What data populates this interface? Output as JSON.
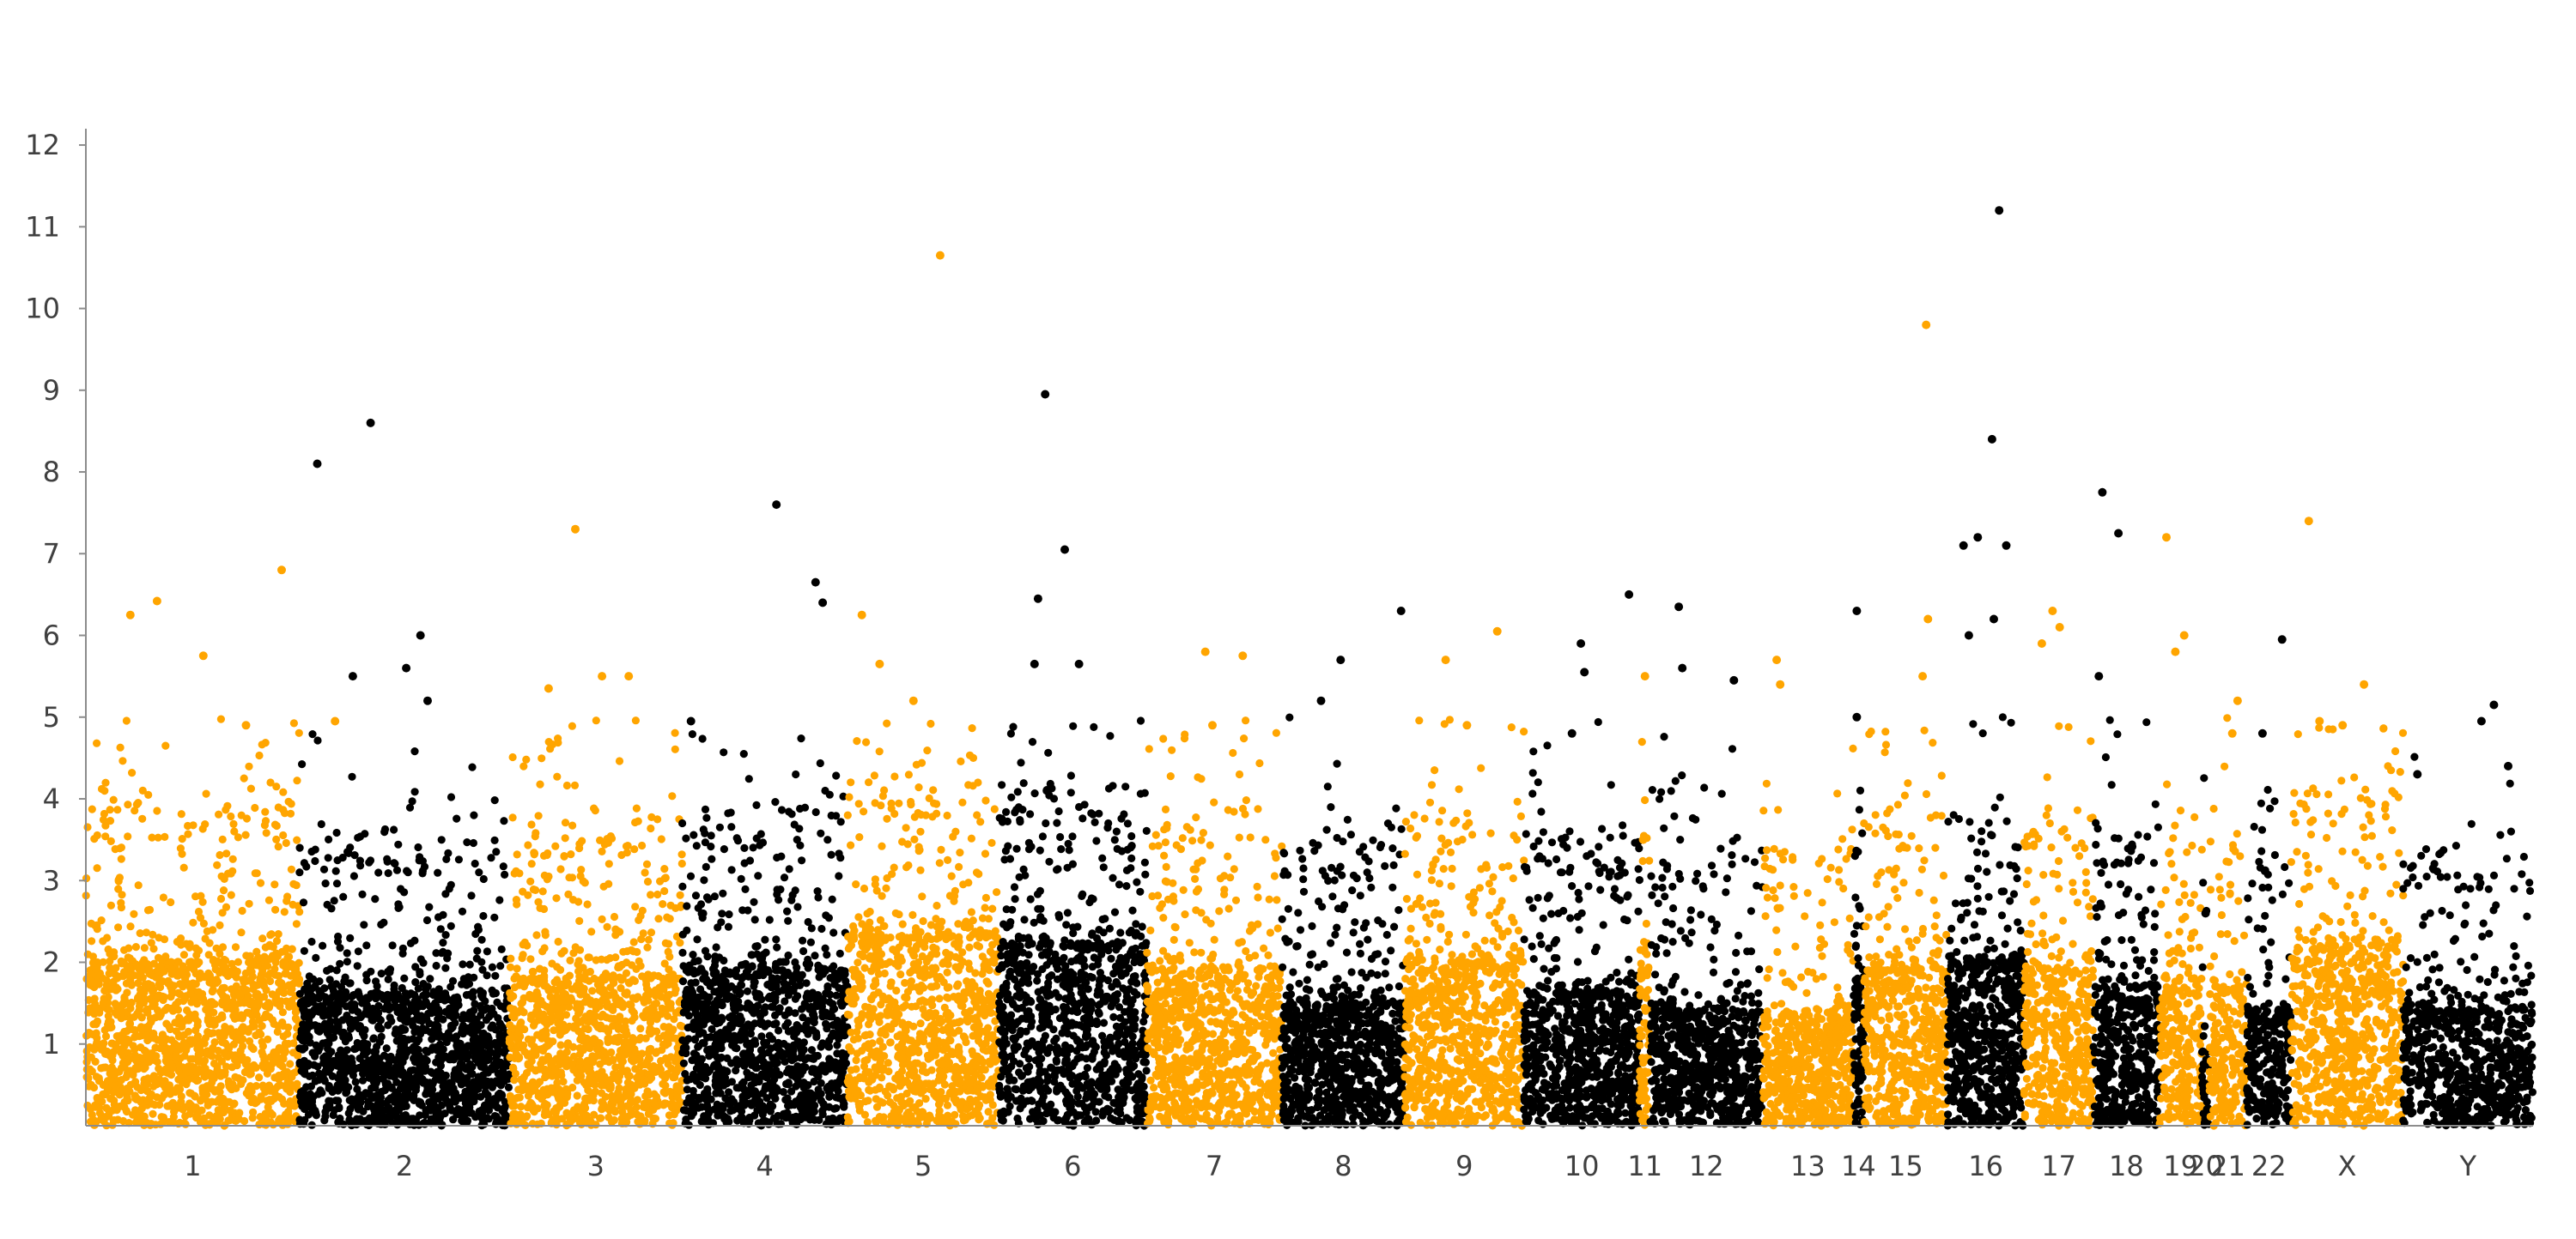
{
  "chart_data": {
    "type": "scatter",
    "title": "",
    "xlabel": "",
    "ylabel": "",
    "grid": false,
    "legend": "none",
    "ylim": [
      0,
      12.2
    ],
    "y_ticks": [
      "1",
      "2",
      "3",
      "4",
      "5",
      "6",
      "7",
      "8",
      "9",
      "10",
      "11",
      "12"
    ],
    "colors": {
      "odd": "#ffa500",
      "even": "#000000"
    },
    "categories": [
      "1",
      "2",
      "3",
      "4",
      "5",
      "6",
      "7",
      "8",
      "9",
      "10",
      "11",
      "12",
      "13",
      "14",
      "15",
      "16",
      "17",
      "18",
      "19",
      "20",
      "21",
      "22",
      "X",
      "Y"
    ],
    "chromosomes": [
      {
        "label": "1",
        "range": [
          0.0,
          12.0
        ],
        "max_bulk": 2.0,
        "top_points": [
          [
            2.5,
            6.25
          ],
          [
            4.0,
            6.42
          ],
          [
            6.6,
            5.75
          ],
          [
            11.0,
            6.8
          ],
          [
            9.0,
            4.9
          ],
          [
            14.0,
            4.95
          ]
        ],
        "count": 1500
      },
      {
        "label": "2",
        "range": [
          12.0,
          23.8
        ],
        "max_bulk": 1.6,
        "top_points": [
          [
            13.0,
            8.1
          ],
          [
            16.0,
            8.6
          ],
          [
            18.0,
            5.6
          ],
          [
            18.8,
            6.0
          ],
          [
            15.0,
            5.5
          ],
          [
            19.2,
            5.2
          ]
        ],
        "count": 1400
      },
      {
        "label": "3",
        "range": [
          23.8,
          33.5
        ],
        "max_bulk": 1.8,
        "top_points": [
          [
            27.5,
            7.3
          ],
          [
            29.0,
            5.5
          ],
          [
            30.5,
            5.5
          ],
          [
            26.0,
            5.35
          ]
        ],
        "count": 1150
      },
      {
        "label": "4",
        "range": [
          33.5,
          42.8
        ],
        "max_bulk": 1.9,
        "top_points": [
          [
            38.8,
            7.6
          ],
          [
            41.0,
            6.65
          ],
          [
            41.4,
            6.4
          ],
          [
            34.0,
            4.95
          ]
        ],
        "count": 1100
      },
      {
        "label": "5",
        "range": [
          42.8,
          51.3
        ],
        "max_bulk": 2.3,
        "top_points": [
          [
            48.0,
            10.65
          ],
          [
            43.6,
            6.25
          ],
          [
            44.6,
            5.65
          ],
          [
            46.5,
            5.2
          ]
        ],
        "count": 1000
      },
      {
        "label": "6",
        "range": [
          51.3,
          59.6
        ],
        "max_bulk": 2.2,
        "top_points": [
          [
            53.9,
            8.95
          ],
          [
            55.0,
            7.05
          ],
          [
            53.5,
            6.45
          ],
          [
            53.3,
            5.65
          ],
          [
            55.8,
            5.65
          ]
        ],
        "count": 1000
      },
      {
        "label": "7",
        "range": [
          59.6,
          67.2
        ],
        "max_bulk": 1.9,
        "top_points": [
          [
            62.9,
            5.8
          ],
          [
            65.0,
            5.75
          ],
          [
            63.3,
            4.9
          ]
        ],
        "count": 900
      },
      {
        "label": "8",
        "range": [
          67.2,
          74.1
        ],
        "max_bulk": 1.5,
        "top_points": [
          [
            70.5,
            5.7
          ],
          [
            73.9,
            6.3
          ],
          [
            69.4,
            5.2
          ]
        ],
        "count": 850
      },
      {
        "label": "9",
        "range": [
          74.1,
          80.8
        ],
        "max_bulk": 2.0,
        "top_points": [
          [
            79.3,
            6.05
          ],
          [
            76.4,
            5.7
          ],
          [
            77.6,
            4.9
          ]
        ],
        "count": 800
      },
      {
        "label": "10",
        "range": [
          80.8,
          87.3
        ],
        "max_bulk": 1.6,
        "top_points": [
          [
            84.0,
            5.9
          ],
          [
            84.2,
            5.55
          ],
          [
            86.7,
            6.5
          ],
          [
            83.5,
            4.8
          ]
        ],
        "count": 800
      },
      {
        "label": "11",
        "range": [
          87.3,
          87.9
        ],
        "max_bulk": 1.9,
        "top_points": [
          [
            87.6,
            5.5
          ],
          [
            87.5,
            3.5
          ]
        ],
        "count": 80
      },
      {
        "label": "12",
        "range": [
          87.9,
          94.2
        ],
        "max_bulk": 1.4,
        "top_points": [
          [
            89.5,
            6.35
          ],
          [
            89.7,
            5.6
          ],
          [
            92.6,
            5.45
          ]
        ],
        "count": 750
      },
      {
        "label": "13",
        "range": [
          94.2,
          99.3
        ],
        "max_bulk": 1.4,
        "top_points": [
          [
            95.0,
            5.7
          ],
          [
            95.2,
            5.4
          ]
        ],
        "count": 600
      },
      {
        "label": "14",
        "range": [
          99.3,
          99.9
        ],
        "max_bulk": 1.8,
        "top_points": [
          [
            99.5,
            6.3
          ],
          [
            99.5,
            5.0
          ]
        ],
        "count": 90
      },
      {
        "label": "15",
        "range": [
          99.9,
          104.6
        ],
        "max_bulk": 1.9,
        "top_points": [
          [
            103.4,
            9.8
          ],
          [
            103.5,
            6.2
          ],
          [
            103.2,
            5.5
          ]
        ],
        "count": 550
      },
      {
        "label": "16",
        "range": [
          104.6,
          108.9
        ],
        "max_bulk": 2.0,
        "top_points": [
          [
            107.5,
            11.2
          ],
          [
            107.1,
            8.4
          ],
          [
            105.5,
            7.1
          ],
          [
            106.3,
            7.2
          ],
          [
            107.9,
            7.1
          ],
          [
            107.2,
            6.2
          ],
          [
            105.8,
            6.0
          ]
        ],
        "count": 600
      },
      {
        "label": "17",
        "range": [
          108.9,
          112.8
        ],
        "max_bulk": 1.9,
        "top_points": [
          [
            110.5,
            6.3
          ],
          [
            110.9,
            6.1
          ],
          [
            109.9,
            5.9
          ]
        ],
        "count": 450
      },
      {
        "label": "18",
        "range": [
          112.8,
          116.5
        ],
        "max_bulk": 1.7,
        "top_points": [
          [
            113.3,
            7.75
          ],
          [
            114.2,
            7.25
          ],
          [
            113.1,
            5.5
          ]
        ],
        "count": 450
      },
      {
        "label": "19",
        "range": [
          116.5,
          118.9
        ],
        "max_bulk": 1.8,
        "top_points": [
          [
            116.9,
            7.2
          ],
          [
            117.9,
            6.0
          ],
          [
            117.4,
            5.8
          ]
        ],
        "count": 250
      },
      {
        "label": "20",
        "range": [
          118.9,
          119.3
        ],
        "max_bulk": 1.0,
        "top_points": [
          [
            119.1,
            2.6
          ]
        ],
        "count": 40
      },
      {
        "label": "21",
        "range": [
          119.3,
          121.4
        ],
        "max_bulk": 1.7,
        "top_points": [
          [
            120.9,
            5.2
          ],
          [
            120.6,
            4.8
          ]
        ],
        "count": 220
      },
      {
        "label": "22",
        "range": [
          121.4,
          123.9
        ],
        "max_bulk": 1.4,
        "top_points": [
          [
            123.4,
            5.95
          ],
          [
            122.3,
            4.8
          ]
        ],
        "count": 280
      },
      {
        "label": "X",
        "range": [
          123.9,
          130.2
        ],
        "max_bulk": 2.2,
        "top_points": [
          [
            124.9,
            7.4
          ],
          [
            128.0,
            5.4
          ],
          [
            125.5,
            4.95
          ],
          [
            126.8,
            4.9
          ]
        ],
        "count": 700
      },
      {
        "label": "Y",
        "range": [
          130.2,
          137.5
        ],
        "max_bulk": 1.4,
        "top_points": [
          [
            135.3,
            5.15
          ],
          [
            134.6,
            4.95
          ],
          [
            136.1,
            4.4
          ],
          [
            131.0,
            4.3
          ]
        ],
        "count": 700
      }
    ]
  }
}
